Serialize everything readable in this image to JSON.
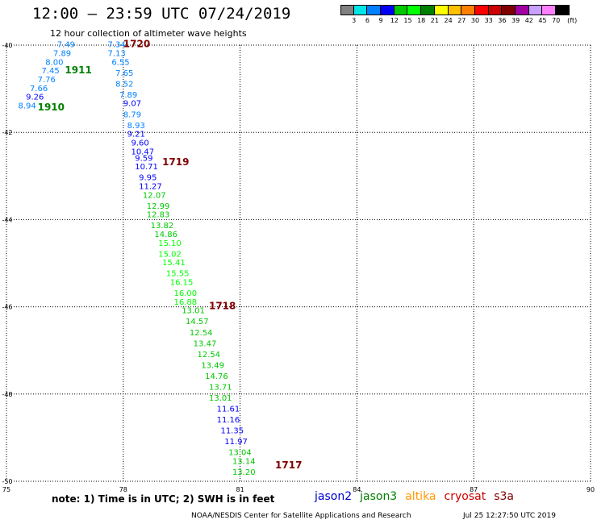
{
  "header": {
    "title": "12:00 — 23:59 UTC 07/24/2019",
    "subtitle": "12 hour collection of altimeter wave heights"
  },
  "colorbar": {
    "unit": "(ft)",
    "colors": [
      "#808080",
      "#00e5e5",
      "#0080ff",
      "#0000ff",
      "#00c800",
      "#00ff00",
      "#008000",
      "#ffff00",
      "#ffc000",
      "#ff8000",
      "#ff0000",
      "#cc0000",
      "#800000",
      "#a000a0",
      "#c8a0ff",
      "#ff80ff",
      "#000000"
    ],
    "labels": [
      "3",
      "6",
      "9",
      "12",
      "15",
      "18",
      "21",
      "24",
      "27",
      "30",
      "33",
      "36",
      "39",
      "42",
      "45",
      "70"
    ]
  },
  "map": {
    "lon_range": [
      75,
      90
    ],
    "lat_range": [
      -50,
      -40
    ],
    "x_ticks": [
      "75",
      "78",
      "81",
      "84",
      "87",
      "90"
    ],
    "y_ticks": [
      "-40",
      "-42",
      "-44",
      "-46",
      "-48",
      "-50"
    ],
    "observations": [
      {
        "lon": 76.3,
        "lat": -40.05,
        "v": "7.49"
      },
      {
        "lon": 76.2,
        "lat": -40.25,
        "v": "7.89"
      },
      {
        "lon": 76.0,
        "lat": -40.45,
        "v": "8.00"
      },
      {
        "lon": 75.9,
        "lat": -40.65,
        "v": "7.45"
      },
      {
        "lon": 75.8,
        "lat": -40.85,
        "v": "7.76"
      },
      {
        "lon": 75.6,
        "lat": -41.05,
        "v": "7.66"
      },
      {
        "lon": 75.5,
        "lat": -41.25,
        "v": "9.26"
      },
      {
        "lon": 75.3,
        "lat": -41.45,
        "v": "8.94"
      },
      {
        "lon": 77.6,
        "lat": -40.05,
        "v": "7.34"
      },
      {
        "lon": 77.6,
        "lat": -40.25,
        "v": "7.13"
      },
      {
        "lon": 77.7,
        "lat": -40.45,
        "v": "6.55"
      },
      {
        "lon": 77.8,
        "lat": -40.7,
        "v": "7.65"
      },
      {
        "lon": 77.8,
        "lat": -40.95,
        "v": "8.52"
      },
      {
        "lon": 77.9,
        "lat": -41.2,
        "v": "7.89"
      },
      {
        "lon": 78.0,
        "lat": -41.4,
        "v": "9.07"
      },
      {
        "lon": 78.0,
        "lat": -41.65,
        "v": "8.79"
      },
      {
        "lon": 78.1,
        "lat": -41.9,
        "v": "8.93"
      },
      {
        "lon": 78.1,
        "lat": -42.1,
        "v": "9.21"
      },
      {
        "lon": 78.2,
        "lat": -42.3,
        "v": "9.60"
      },
      {
        "lon": 78.2,
        "lat": -42.5,
        "v": "10.47"
      },
      {
        "lon": 78.3,
        "lat": -42.65,
        "v": "9.59"
      },
      {
        "lon": 78.3,
        "lat": -42.85,
        "v": "10.71"
      },
      {
        "lon": 78.4,
        "lat": -43.1,
        "v": "9.95"
      },
      {
        "lon": 78.4,
        "lat": -43.3,
        "v": "11.27"
      },
      {
        "lon": 78.5,
        "lat": -43.5,
        "v": "12.07"
      },
      {
        "lon": 78.6,
        "lat": -43.75,
        "v": "12.99"
      },
      {
        "lon": 78.6,
        "lat": -43.95,
        "v": "12.83"
      },
      {
        "lon": 78.7,
        "lat": -44.2,
        "v": "13.82"
      },
      {
        "lon": 78.8,
        "lat": -44.4,
        "v": "14.86"
      },
      {
        "lon": 78.9,
        "lat": -44.6,
        "v": "15.10"
      },
      {
        "lon": 78.9,
        "lat": -44.85,
        "v": "15.02"
      },
      {
        "lon": 79.0,
        "lat": -45.05,
        "v": "15.41"
      },
      {
        "lon": 79.1,
        "lat": -45.3,
        "v": "15.55"
      },
      {
        "lon": 79.2,
        "lat": -45.5,
        "v": "16.15"
      },
      {
        "lon": 79.3,
        "lat": -45.75,
        "v": "16.00"
      },
      {
        "lon": 79.3,
        "lat": -45.95,
        "v": "16.88"
      },
      {
        "lon": 79.5,
        "lat": -46.15,
        "v": "13.01"
      },
      {
        "lon": 79.6,
        "lat": -46.4,
        "v": "14.57"
      },
      {
        "lon": 79.7,
        "lat": -46.65,
        "v": "12.54"
      },
      {
        "lon": 79.8,
        "lat": -46.9,
        "v": "13.47"
      },
      {
        "lon": 79.9,
        "lat": -47.15,
        "v": "12.54"
      },
      {
        "lon": 80.0,
        "lat": -47.4,
        "v": "13.49"
      },
      {
        "lon": 80.1,
        "lat": -47.65,
        "v": "14.76"
      },
      {
        "lon": 80.2,
        "lat": -47.9,
        "v": "13.71"
      },
      {
        "lon": 80.2,
        "lat": -48.15,
        "v": "13.01"
      },
      {
        "lon": 80.4,
        "lat": -48.4,
        "v": "11.61"
      },
      {
        "lon": 80.4,
        "lat": -48.65,
        "v": "11.16"
      },
      {
        "lon": 80.5,
        "lat": -48.9,
        "v": "11.35"
      },
      {
        "lon": 80.6,
        "lat": -49.15,
        "v": "11.97"
      },
      {
        "lon": 80.7,
        "lat": -49.4,
        "v": "13.04"
      },
      {
        "lon": 80.8,
        "lat": -49.6,
        "v": "13.14"
      },
      {
        "lon": 80.8,
        "lat": -49.85,
        "v": "13.20"
      }
    ],
    "pass_labels": [
      {
        "lon": 76.5,
        "lat": -40.65,
        "text": "1911",
        "color": "#008000"
      },
      {
        "lon": 75.8,
        "lat": -41.5,
        "text": "1910",
        "color": "#008000"
      },
      {
        "lon": 78.0,
        "lat": -40.05,
        "text": "1720",
        "color": "#800000"
      },
      {
        "lon": 79.0,
        "lat": -42.75,
        "text": "1719",
        "color": "#800000"
      },
      {
        "lon": 80.2,
        "lat": -46.05,
        "text": "1718",
        "color": "#800000"
      },
      {
        "lon": 81.9,
        "lat": -49.7,
        "text": "1717",
        "color": "#800000"
      }
    ]
  },
  "note": "note:  1) Time is in UTC; 2) SWH is in feet",
  "legend": [
    {
      "name": "jason2",
      "color": "#0000cc"
    },
    {
      "name": "jason3",
      "color": "#008000"
    },
    {
      "name": "altika",
      "color": "#ff9900"
    },
    {
      "name": "cryosat",
      "color": "#cc0000"
    },
    {
      "name": "s3a",
      "color": "#800000"
    }
  ],
  "footer": {
    "credit": "NOAA/NESDIS Center for Satellite Applications and Research",
    "timestamp": "Jul 25 12:27:50 UTC 2019"
  }
}
